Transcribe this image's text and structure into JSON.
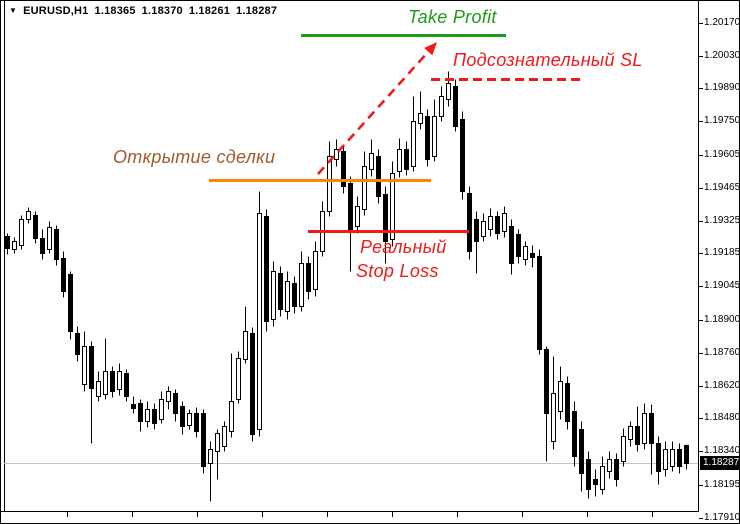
{
  "quote_bar": {
    "symbol_period": "EURUSD,H1",
    "open": "1.18365",
    "high": "1.18370",
    "low": "1.18261",
    "close": "1.18287"
  },
  "annotations": {
    "take_profit": {
      "label": "Take Profit",
      "color": "#1b9a1b"
    },
    "subconscious_sl": {
      "label": "Подсознательный SL",
      "color": "#ef1a1a"
    },
    "open_trade": {
      "label": "Открытие сделки",
      "text_color": "#a3592b",
      "line_color": "#ff8400"
    },
    "real_stop_loss": {
      "line1": "Реальный",
      "line2": "Stop Loss",
      "color": "#ef1a1a"
    },
    "trend_arrow": {
      "style": "dashed",
      "color": "#ef1a1a",
      "direction": "up"
    }
  },
  "price_axis": {
    "current_price_label": "1.18287"
  },
  "chart_data": {
    "type": "candlestick",
    "symbol": "EURUSD",
    "timeframe": "H1",
    "grid": false,
    "background": "#ffffff",
    "bull_color": "#ffffff",
    "bear_color": "#000000",
    "outline_color": "#000000",
    "current_price": 1.18287,
    "current_price_line_color": "#c6c6c6",
    "ylim": [
      1.1808,
      1.2026
    ],
    "y_ticks": [
      "1.20170",
      "1.20030",
      "1.19890",
      "1.19750",
      "1.19605",
      "1.19465",
      "1.19325",
      "1.19185",
      "1.19045",
      "1.18900",
      "1.18760",
      "1.18620",
      "1.18480",
      "1.18340",
      "1.18195",
      "1.17910"
    ],
    "levels": [
      {
        "id": "take_profit",
        "label": "Take Profit",
        "price": 1.2012,
        "style": "solid",
        "color": "#1b9a1b"
      },
      {
        "id": "subconscious_sl",
        "label": "Подсознательный SL",
        "price": 1.1993,
        "style": "dashed",
        "color": "#ef1a1a"
      },
      {
        "id": "open_trade",
        "label": "Открытие сделки",
        "price": 1.195,
        "style": "solid",
        "color": "#ff8400"
      },
      {
        "id": "real_stop_loss",
        "label": "Реальный Stop Loss",
        "price": 1.1928,
        "style": "solid",
        "color": "#ef1a1a"
      }
    ],
    "arrow": {
      "from_price": 1.1951,
      "to_price": 1.2008,
      "style": "dashed",
      "color": "#ef1a1a"
    },
    "candles": [
      [
        1.19259,
        1.19272,
        1.19182,
        1.19208
      ],
      [
        1.19204,
        1.19255,
        1.19187,
        1.19238
      ],
      [
        1.19221,
        1.19349,
        1.19204,
        1.19332
      ],
      [
        1.19332,
        1.19383,
        1.19315,
        1.19366
      ],
      [
        1.19349,
        1.19366,
        1.19229,
        1.19251
      ],
      [
        1.19251,
        1.19289,
        1.19161,
        1.19187
      ],
      [
        1.19204,
        1.19323,
        1.19187,
        1.19298
      ],
      [
        1.19289,
        1.19306,
        1.19135,
        1.19161
      ],
      [
        1.19165,
        1.19195,
        1.18998,
        1.19024
      ],
      [
        1.19097,
        1.1911,
        1.18819,
        1.18853
      ],
      [
        1.18845,
        1.18874,
        1.18725,
        1.18755
      ],
      [
        1.18626,
        1.18853,
        1.18597,
        1.18789
      ],
      [
        1.18789,
        1.1881,
        1.18374,
        1.18609
      ],
      [
        1.18575,
        1.18682,
        1.18554,
        1.18639
      ],
      [
        1.18584,
        1.18823,
        1.18562,
        1.18682
      ],
      [
        1.18682,
        1.18703,
        1.18571,
        1.18597
      ],
      [
        1.18605,
        1.18716,
        1.18579,
        1.18682
      ],
      [
        1.18674,
        1.18691,
        1.18554,
        1.18575
      ],
      [
        1.18541,
        1.18575,
        1.18503,
        1.18524
      ],
      [
        1.18545,
        1.18562,
        1.18426,
        1.18468
      ],
      [
        1.18468,
        1.18554,
        1.18443,
        1.1852
      ],
      [
        1.1852,
        1.18545,
        1.18434,
        1.1846
      ],
      [
        1.18477,
        1.18597,
        1.1846,
        1.18562
      ],
      [
        1.18554,
        1.18618,
        1.1852,
        1.18597
      ],
      [
        1.18588,
        1.18605,
        1.18468,
        1.18503
      ],
      [
        1.18532,
        1.18554,
        1.18413,
        1.18447
      ],
      [
        1.18451,
        1.1852,
        1.18434,
        1.18503
      ],
      [
        1.18503,
        1.18528,
        1.184,
        1.18426
      ],
      [
        1.18503,
        1.1852,
        1.18246,
        1.18276
      ],
      [
        1.18289,
        1.18383,
        1.18126,
        1.18349
      ],
      [
        1.1834,
        1.18434,
        1.1822,
        1.18417
      ],
      [
        1.18361,
        1.18468,
        1.1834,
        1.18447
      ],
      [
        1.18426,
        1.18759,
        1.184,
        1.18554
      ],
      [
        1.18562,
        1.18768,
        1.18545,
        1.18738
      ],
      [
        1.18733,
        1.1896,
        1.18716,
        1.18853
      ],
      [
        1.18845,
        1.1887,
        1.18383,
        1.18413
      ],
      [
        1.18434,
        1.19452,
        1.18404,
        1.19358
      ],
      [
        1.19345,
        1.19375,
        1.18853,
        1.18896
      ],
      [
        1.18904,
        1.19152,
        1.18874,
        1.1911
      ],
      [
        1.19101,
        1.19131,
        1.18917,
        1.18947
      ],
      [
        1.18939,
        1.1911,
        1.18904,
        1.19067
      ],
      [
        1.19058,
        1.19088,
        1.1893,
        1.1896
      ],
      [
        1.1896,
        1.19195,
        1.18939,
        1.19144
      ],
      [
        1.19144,
        1.19174,
        1.1899,
        1.19024
      ],
      [
        1.19033,
        1.19238,
        1.19003,
        1.19195
      ],
      [
        1.19195,
        1.19409,
        1.19174,
        1.19366
      ],
      [
        1.19366,
        1.19665,
        1.19345,
        1.19601
      ],
      [
        1.19588,
        1.19674,
        1.19558,
        1.19631
      ],
      [
        1.19623,
        1.19644,
        1.19443,
        1.19473
      ],
      [
        1.19486,
        1.19516,
        1.1911,
        1.19289
      ],
      [
        1.19302,
        1.1943,
        1.19272,
        1.19387
      ],
      [
        1.19375,
        1.19623,
        1.19349,
        1.19558
      ],
      [
        1.19546,
        1.19674,
        1.19516,
        1.19614
      ],
      [
        1.19601,
        1.19631,
        1.194,
        1.1943
      ],
      [
        1.19439,
        1.19473,
        1.19144,
        1.19238
      ],
      [
        1.19246,
        1.1958,
        1.19216,
        1.19529
      ],
      [
        1.19537,
        1.19678,
        1.19511,
        1.19631
      ],
      [
        1.19631,
        1.19665,
        1.1952,
        1.19546
      ],
      [
        1.19558,
        1.19858,
        1.19537,
        1.19751
      ],
      [
        1.19742,
        1.19879,
        1.19717,
        1.19785
      ],
      [
        1.19772,
        1.19802,
        1.19558,
        1.19588
      ],
      [
        1.19601,
        1.19845,
        1.1958,
        1.19772
      ],
      [
        1.19772,
        1.199,
        1.19751,
        1.19858
      ],
      [
        1.19845,
        1.19965,
        1.19815,
        1.19913
      ],
      [
        1.199,
        1.1993,
        1.19708,
        1.19729
      ],
      [
        1.19759,
        1.19794,
        1.19417,
        1.19452
      ],
      [
        1.19443,
        1.19473,
        1.19161,
        1.19195
      ],
      [
        1.19332,
        1.19366,
        1.19101,
        1.19238
      ],
      [
        1.19259,
        1.19358,
        1.19238,
        1.19323
      ],
      [
        1.19289,
        1.19379,
        1.19259,
        1.19345
      ],
      [
        1.19345,
        1.19366,
        1.19246,
        1.19272
      ],
      [
        1.19281,
        1.19387,
        1.19255,
        1.19358
      ],
      [
        1.19302,
        1.19332,
        1.19097,
        1.19144
      ],
      [
        1.19268,
        1.19289,
        1.19144,
        1.19174
      ],
      [
        1.19161,
        1.19238,
        1.19135,
        1.19216
      ],
      [
        1.19187,
        1.19221,
        1.19127,
        1.19169
      ],
      [
        1.19174,
        1.19204,
        1.18755,
        1.18776
      ],
      [
        1.18776,
        1.18789,
        1.18297,
        1.18503
      ],
      [
        1.18383,
        1.18746,
        1.18349,
        1.18588
      ],
      [
        1.18511,
        1.18703,
        1.18477,
        1.18639
      ],
      [
        1.18631,
        1.18661,
        1.18434,
        1.18468
      ],
      [
        1.18511,
        1.18554,
        1.18276,
        1.18319
      ],
      [
        1.18434,
        1.18468,
        1.18169,
        1.18246
      ],
      [
        1.18306,
        1.1834,
        1.18139,
        1.18178
      ],
      [
        1.1822,
        1.18263,
        1.18148,
        1.18199
      ],
      [
        1.18178,
        1.18319,
        1.18156,
        1.18276
      ],
      [
        1.18255,
        1.1834,
        1.18225,
        1.18306
      ],
      [
        1.18306,
        1.18331,
        1.1819,
        1.1822
      ],
      [
        1.18297,
        1.18438,
        1.18276,
        1.18404
      ],
      [
        1.18391,
        1.18468,
        1.18361,
        1.18447
      ],
      [
        1.18447,
        1.18532,
        1.1834,
        1.1837
      ],
      [
        1.18374,
        1.18545,
        1.18349,
        1.18503
      ],
      [
        1.18503,
        1.18541,
        1.18242,
        1.18374
      ],
      [
        1.18374,
        1.18404,
        1.18199,
        1.18255
      ],
      [
        1.18263,
        1.18383,
        1.18233,
        1.18349
      ],
      [
        1.18276,
        1.18383,
        1.18255,
        1.18349
      ],
      [
        1.18349,
        1.18374,
        1.18246,
        1.18276
      ],
      [
        1.18365,
        1.1837,
        1.18261,
        1.18287
      ]
    ]
  }
}
